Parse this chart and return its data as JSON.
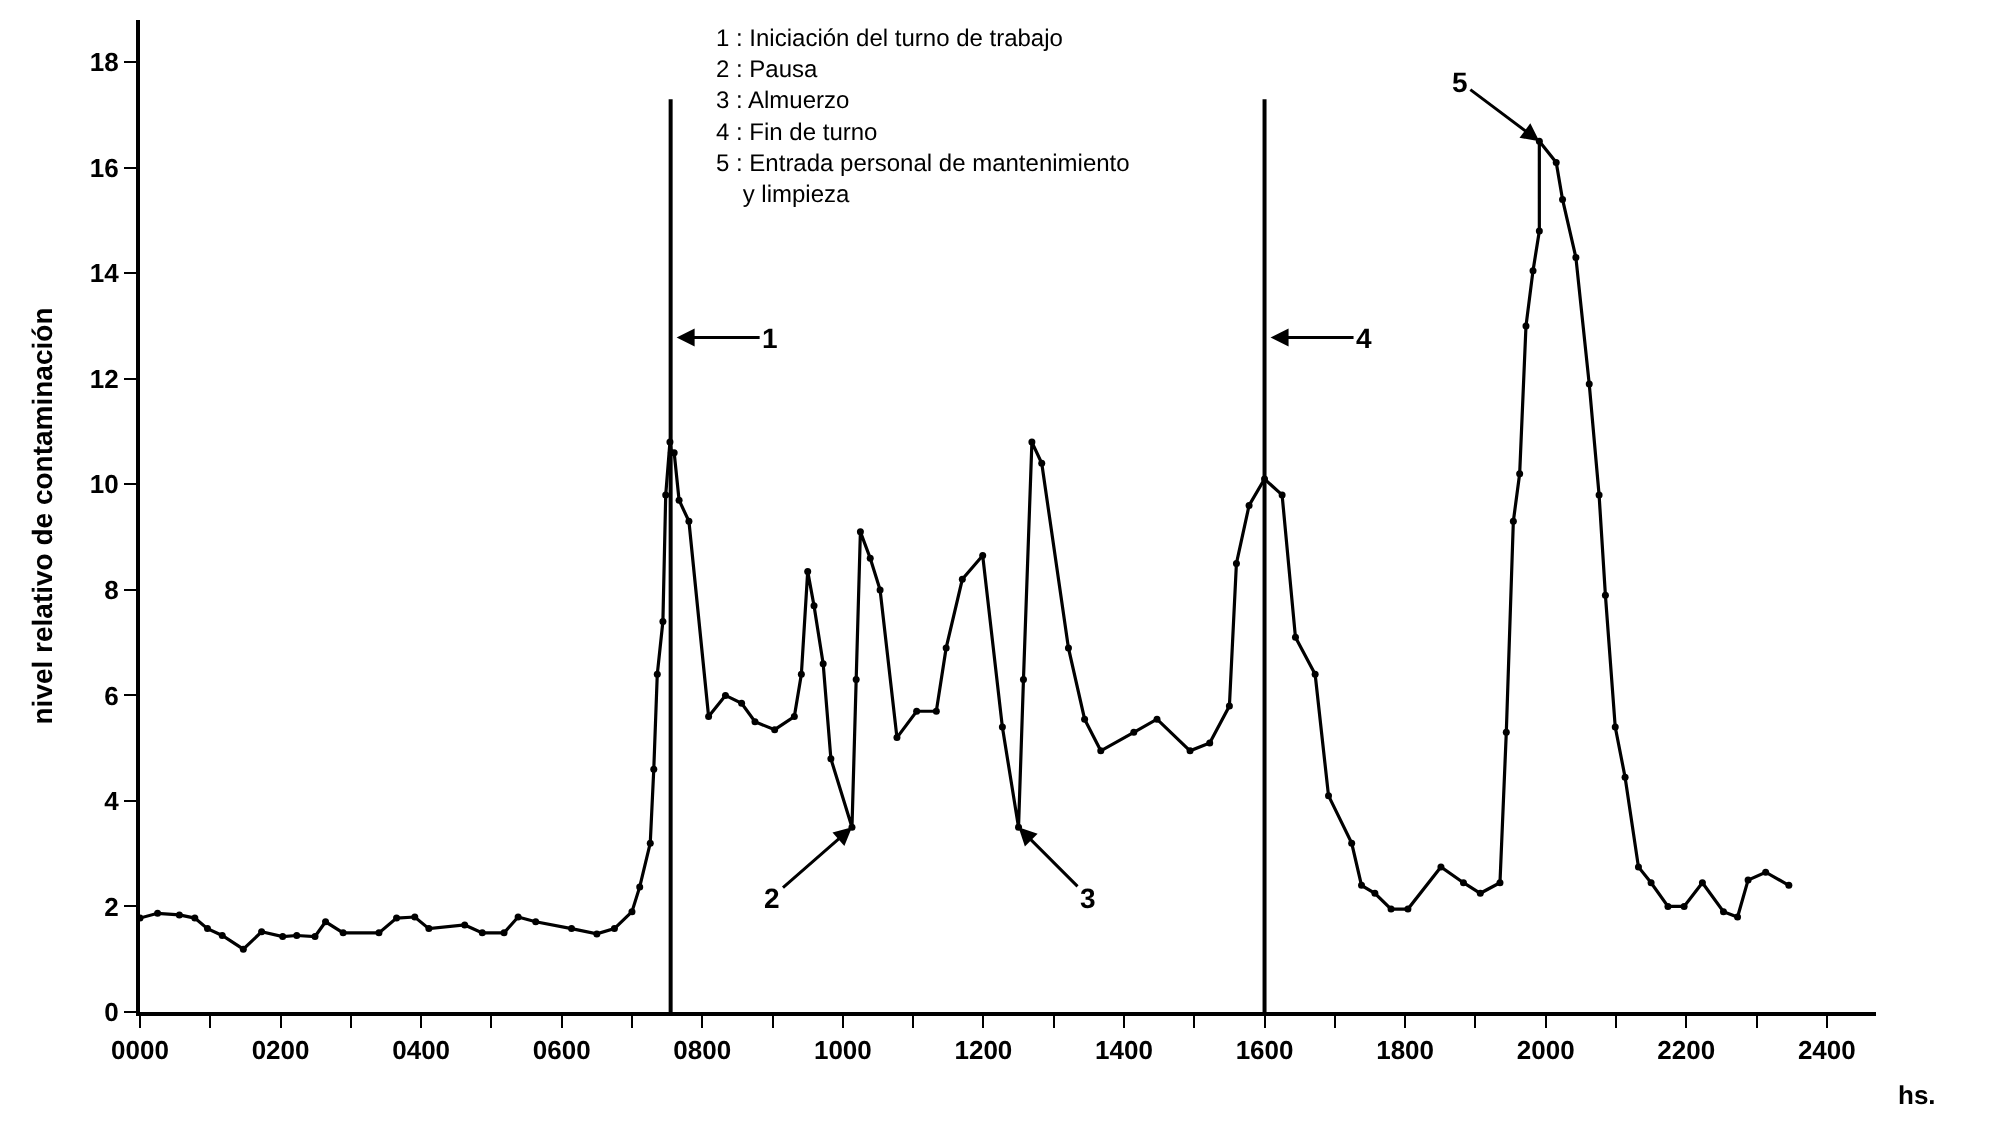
{
  "chart_data": {
    "type": "line",
    "ylabel": "nivel relativo de contaminación",
    "xlabel": "hs.",
    "x": [
      0,
      25,
      56,
      78,
      96,
      117,
      147,
      173,
      203,
      223,
      249,
      264,
      289,
      340,
      365,
      391,
      411,
      462,
      487,
      518,
      538,
      563,
      614,
      650,
      675,
      700,
      711,
      726,
      731,
      736,
      744,
      748,
      754,
      756,
      760,
      767,
      781,
      809,
      833,
      856,
      875,
      903,
      931,
      941,
      950,
      959,
      972,
      983,
      1013,
      1019,
      1025,
      1039,
      1053,
      1077,
      1105,
      1133,
      1147,
      1170,
      1199,
      1227,
      1250,
      1257,
      1269,
      1283,
      1321,
      1344,
      1367,
      1414,
      1447,
      1494,
      1522,
      1550,
      1560,
      1578,
      1600,
      1625,
      1644,
      1672,
      1691,
      1724,
      1738,
      1757,
      1780,
      1804,
      1851,
      1883,
      1907,
      1935,
      1944,
      1954,
      1963,
      1972,
      1982,
      1991,
      1991,
      2015,
      2024,
      2043,
      2062,
      2076,
      2085,
      2099,
      2113,
      2132,
      2150,
      2174,
      2197,
      2223,
      2253,
      2273,
      2288,
      2313,
      2346
    ],
    "series": [
      {
        "color": "#000000",
        "values": [
          1.78,
          1.87,
          1.84,
          1.78,
          1.58,
          1.45,
          1.19,
          1.52,
          1.43,
          1.45,
          1.43,
          1.71,
          1.5,
          1.5,
          1.78,
          1.8,
          1.58,
          1.65,
          1.5,
          1.5,
          1.8,
          1.71,
          1.58,
          1.48,
          1.58,
          1.9,
          2.37,
          3.2,
          4.6,
          6.4,
          7.4,
          9.8,
          10.8,
          10.6,
          10.6,
          9.7,
          9.3,
          5.6,
          6.0,
          5.85,
          5.5,
          5.35,
          5.6,
          6.4,
          8.35,
          7.7,
          6.6,
          4.8,
          3.5,
          6.3,
          9.1,
          8.6,
          8.0,
          5.2,
          5.7,
          5.7,
          6.9,
          8.2,
          8.65,
          5.4,
          3.5,
          6.3,
          10.8,
          10.4,
          6.9,
          5.55,
          4.95,
          5.3,
          5.55,
          4.95,
          5.1,
          5.8,
          8.5,
          9.6,
          10.1,
          9.8,
          7.1,
          6.4,
          4.1,
          3.2,
          2.4,
          2.25,
          1.95,
          1.95,
          2.75,
          2.45,
          2.25,
          2.45,
          5.3,
          9.3,
          10.2,
          13.0,
          14.05,
          14.8,
          16.5,
          16.1,
          15.4,
          14.3,
          11.9,
          9.8,
          7.9,
          5.4,
          4.45,
          2.75,
          2.45,
          2.0,
          2.0,
          2.45,
          1.9,
          1.8,
          2.5,
          2.65,
          2.4
        ]
      }
    ],
    "xlim": [
      0,
      2470
    ],
    "ylim": [
      0,
      18.8
    ],
    "xticks": [
      {
        "value": 0,
        "label": "0000"
      },
      {
        "value": 100,
        "label": null
      },
      {
        "value": 200,
        "label": "0200"
      },
      {
        "value": 300,
        "label": null
      },
      {
        "value": 400,
        "label": "0400"
      },
      {
        "value": 500,
        "label": null
      },
      {
        "value": 600,
        "label": "0600"
      },
      {
        "value": 700,
        "label": null
      },
      {
        "value": 800,
        "label": "0800"
      },
      {
        "value": 900,
        "label": null
      },
      {
        "value": 1000,
        "label": "1000"
      },
      {
        "value": 1100,
        "label": null
      },
      {
        "value": 1200,
        "label": "1200"
      },
      {
        "value": 1300,
        "label": null
      },
      {
        "value": 1400,
        "label": "1400"
      },
      {
        "value": 1500,
        "label": null
      },
      {
        "value": 1600,
        "label": "1600"
      },
      {
        "value": 1700,
        "label": null
      },
      {
        "value": 1800,
        "label": "1800"
      },
      {
        "value": 1900,
        "label": null
      },
      {
        "value": 2000,
        "label": "2000"
      },
      {
        "value": 2100,
        "label": null
      },
      {
        "value": 2200,
        "label": "2200"
      },
      {
        "value": 2300,
        "label": null
      },
      {
        "value": 2400,
        "label": "2400"
      }
    ],
    "yticks": [
      0,
      2,
      4,
      6,
      8,
      10,
      12,
      14,
      16,
      18
    ],
    "ref_lines": [
      {
        "axis": "x",
        "value": 755,
        "color": "#000000"
      },
      {
        "axis": "x",
        "value": 1600,
        "color": "#000000"
      }
    ],
    "annotations": [
      "1",
      {
        "text": "2",
        "x": 1013,
        "y": 3.5
      },
      {
        "text": "3",
        "x": 1250,
        "y": 3.5
      },
      "4",
      {
        "text": "5",
        "x": 1991,
        "y": 16.5
      },
      "1 : Iniciación del turno de trabajo\n2 : Pausa\n3 : Almuerzo\n4 : Fin de turno\n5 : Entrada personal de mantenimiento\n    y limpieza"
    ],
    "marker": "circle",
    "line_style": "solid"
  }
}
